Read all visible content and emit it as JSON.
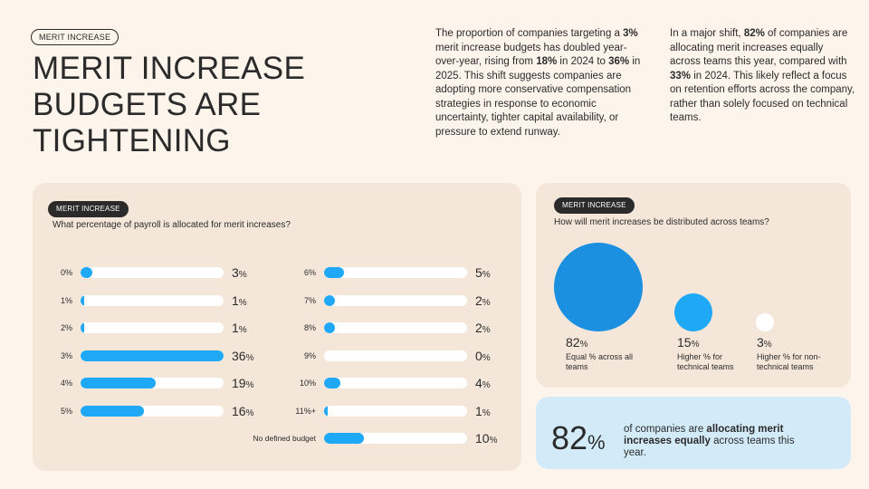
{
  "header": {
    "tag": "MERIT INCREASE",
    "title_lines": [
      "MERIT INCREASE",
      "BUDGETS ARE",
      "TIGHTENING"
    ]
  },
  "intro_left": {
    "t1": "The proportion of companies targeting a ",
    "b1": "3%",
    "t2": " merit increase budgets has doubled year-over-year, rising from ",
    "b2": "18%",
    "t3": " in 2024 to ",
    "b3": "36%",
    "t4": " in 2025. This shift suggests companies are adopting more conservative compensation strategies in response to economic uncertainty, tighter capital availability, or pressure to extend runway."
  },
  "intro_right": {
    "t1": "In a major shift, ",
    "b1": "82%",
    "t2": " of companies are allocating merit increases equally across teams this year, compared with ",
    "b2": "33%",
    "t3": " in 2024. This likely reflect a focus on retention efforts across the company, rather than solely focused on technical teams."
  },
  "payroll_chart": {
    "tag": "MERIT INCREASE",
    "question": "What percentage of payroll is allocated for merit increases?",
    "percent_sign": "%",
    "left_column": [
      {
        "label": "0%",
        "value": 3
      },
      {
        "label": "1%",
        "value": 1
      },
      {
        "label": "2%",
        "value": 1
      },
      {
        "label": "3%",
        "value": 36
      },
      {
        "label": "4%",
        "value": 19
      },
      {
        "label": "5%",
        "value": 16
      }
    ],
    "right_column": [
      {
        "label": "6%",
        "value": 5
      },
      {
        "label": "7%",
        "value": 2
      },
      {
        "label": "8%",
        "value": 2
      },
      {
        "label": "9%",
        "value": 0
      },
      {
        "label": "10%",
        "value": 4
      },
      {
        "label": "11%+",
        "value": 1
      },
      {
        "label": "No defined budget",
        "value": 10
      }
    ],
    "max_value": 36
  },
  "distribution": {
    "tag": "MERIT INCREASE",
    "question": "How will merit increases be distributed across teams?",
    "items": [
      {
        "value": "82",
        "desc": "Equal % across all teams",
        "color": "#1b8fe0"
      },
      {
        "value": "15",
        "desc": "Higher % for technical teams",
        "color": "#1ea8f5"
      },
      {
        "value": "3",
        "desc": "Higher % for non-technical teams",
        "color": "#ffffff"
      }
    ]
  },
  "callout": {
    "number": "82",
    "pct": "%",
    "t1": "of companies are ",
    "b1": "allocating merit increases equally",
    "t2": " across teams this year."
  }
}
